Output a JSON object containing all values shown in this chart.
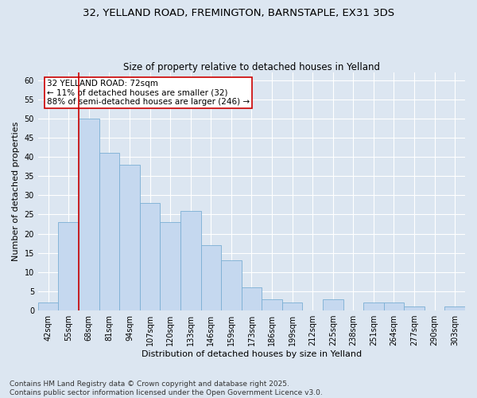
{
  "title_line1": "32, YELLAND ROAD, FREMINGTON, BARNSTAPLE, EX31 3DS",
  "title_line2": "Size of property relative to detached houses in Yelland",
  "xlabel": "Distribution of detached houses by size in Yelland",
  "ylabel": "Number of detached properties",
  "categories": [
    "42sqm",
    "55sqm",
    "68sqm",
    "81sqm",
    "94sqm",
    "107sqm",
    "120sqm",
    "133sqm",
    "146sqm",
    "159sqm",
    "173sqm",
    "186sqm",
    "199sqm",
    "212sqm",
    "225sqm",
    "238sqm",
    "251sqm",
    "264sqm",
    "277sqm",
    "290sqm",
    "303sqm"
  ],
  "values": [
    2,
    23,
    50,
    41,
    38,
    28,
    23,
    26,
    17,
    13,
    6,
    3,
    2,
    0,
    3,
    0,
    2,
    2,
    1,
    0,
    1
  ],
  "bar_color": "#c5d8ef",
  "bar_edge_color": "#7bafd4",
  "background_color": "#dce6f1",
  "plot_bg_color": "#dce6f1",
  "grid_color": "#ffffff",
  "red_line_x": 1.5,
  "annotation_text": "32 YELLAND ROAD: 72sqm\n← 11% of detached houses are smaller (32)\n88% of semi-detached houses are larger (246) →",
  "annotation_box_color": "#ffffff",
  "annotation_border_color": "#cc0000",
  "ylim": [
    0,
    62
  ],
  "yticks": [
    0,
    5,
    10,
    15,
    20,
    25,
    30,
    35,
    40,
    45,
    50,
    55,
    60
  ],
  "footnote": "Contains HM Land Registry data © Crown copyright and database right 2025.\nContains public sector information licensed under the Open Government Licence v3.0.",
  "title_fontsize": 9.5,
  "subtitle_fontsize": 8.5,
  "axis_label_fontsize": 8,
  "tick_fontsize": 7,
  "annotation_fontsize": 7.5,
  "footnote_fontsize": 6.5
}
